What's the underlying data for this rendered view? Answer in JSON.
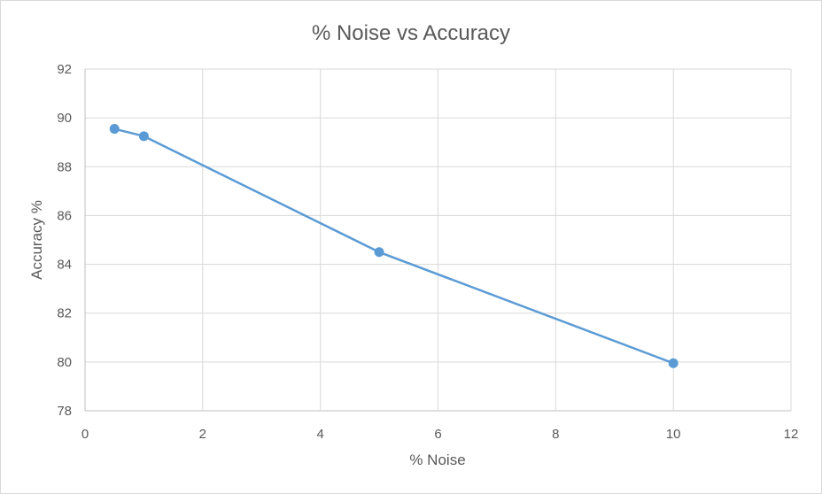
{
  "chart_data": {
    "type": "scatter",
    "title": "% Noise vs Accuracy",
    "xlabel": "% Noise",
    "ylabel": "Accuracy %",
    "xlim": [
      0,
      12
    ],
    "ylim": [
      78,
      92
    ],
    "x_ticks": [
      0,
      2,
      4,
      6,
      8,
      10,
      12
    ],
    "y_ticks": [
      78,
      80,
      82,
      84,
      86,
      88,
      90,
      92
    ],
    "grid": true,
    "legend": "none",
    "lines_connect_points": true,
    "series": [
      {
        "color": "#5b9bd5",
        "points": [
          {
            "x": 0.5,
            "y": 89.55
          },
          {
            "x": 1,
            "y": 89.25
          },
          {
            "x": 5,
            "y": 84.5
          },
          {
            "x": 10,
            "y": 79.95
          }
        ]
      }
    ]
  }
}
